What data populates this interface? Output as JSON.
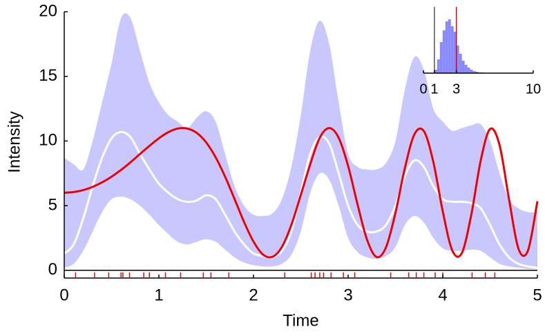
{
  "chart_data": [
    {
      "type": "line",
      "xlabel": "Time",
      "ylabel": "Intensity",
      "xlim": [
        0,
        5
      ],
      "ylim": [
        -0.6,
        20
      ],
      "xticks": [
        0,
        1,
        2,
        3,
        4,
        5
      ],
      "yticks": [
        0,
        5,
        10,
        15,
        20
      ],
      "x": [
        0,
        0.1,
        0.2,
        0.3,
        0.4,
        0.5,
        0.6,
        0.7,
        0.8,
        0.9,
        1,
        1.1,
        1.2,
        1.3,
        1.4,
        1.5,
        1.6,
        1.7,
        1.8,
        1.9,
        2,
        2.1,
        2.2,
        2.3,
        2.4,
        2.5,
        2.6,
        2.7,
        2.8,
        2.9,
        3,
        3.1,
        3.2,
        3.3,
        3.4,
        3.5,
        3.6,
        3.7,
        3.8,
        3.9,
        4,
        4.1,
        4.2,
        4.3,
        4.4,
        4.5,
        4.6,
        4.7,
        4.8,
        4.9,
        5
      ],
      "band": {
        "color": "#c8c8ff",
        "upper": [
          8.7,
          8.2,
          7.8,
          10,
          13,
          16,
          19.5,
          19.5,
          17,
          14.5,
          13,
          12,
          11.5,
          11,
          11.8,
          12.3,
          11.5,
          9,
          6.5,
          5,
          4.3,
          4.2,
          4.4,
          5.5,
          8,
          12,
          17,
          19.3,
          17.5,
          13,
          9,
          8,
          7.8,
          7.8,
          8.3,
          10,
          14,
          16.5,
          15.5,
          12.5,
          11.5,
          10.8,
          11,
          11.2,
          11.3,
          10,
          7.5,
          5.5,
          4.8,
          4.5,
          4.5
        ],
        "lower": [
          0.2,
          0.5,
          1.5,
          3,
          4.5,
          5.5,
          5.7,
          5.5,
          5,
          4.3,
          3.5,
          2.8,
          2.2,
          2,
          2.2,
          2.4,
          2.2,
          1.6,
          1,
          0.6,
          0.4,
          0.3,
          0.3,
          0.5,
          1.2,
          3,
          6,
          7.5,
          7,
          5,
          2.5,
          1.4,
          1,
          0.9,
          1.1,
          1.8,
          3.5,
          4.2,
          3.7,
          2.5,
          1.7,
          1.5,
          1.5,
          1.6,
          1.5,
          1,
          0.5,
          0.3,
          0.2,
          0.1,
          0.1
        ]
      },
      "series": [
        {
          "color": "#ffffff",
          "values": [
            1.3,
            2,
            4,
            6.5,
            8.7,
            10.2,
            10.7,
            10.3,
            9,
            7.8,
            6.7,
            6,
            5.5,
            5.3,
            5.4,
            5.8,
            5.5,
            4.3,
            3,
            2,
            1.3,
            1.1,
            1,
            1.5,
            3,
            6,
            9,
            10.3,
            9.8,
            7.5,
            5,
            3.5,
            3,
            3,
            3.5,
            5,
            7.3,
            8.5,
            8,
            6.5,
            5.5,
            5.3,
            5.3,
            5.2,
            4.8,
            3.5,
            2,
            1,
            0.5,
            0.3,
            0.2
          ]
        },
        {
          "color": "#ee0000",
          "values": [
            6,
            6.05,
            6.2,
            6.45,
            6.8,
            7.24,
            7.76,
            8.35,
            8.99,
            9.62,
            10.21,
            10.68,
            10.96,
            10.96,
            10.63,
            9.89,
            8.74,
            7.24,
            5.51,
            3.74,
            2.22,
            1.22,
            1.04,
            1.81,
            3.51,
            5.83,
            8.21,
            10.25,
            11,
            10.25,
            8.06,
            5.08,
            2.36,
            1.03,
            1.77,
            4.44,
            7.92,
            10.51,
            10.77,
            8.39,
            4.56,
            1.55,
            1.31,
            4.24,
            8.45,
            10.93,
            9.69,
            5.5,
            1.67,
            1.52,
            5.34
          ]
        }
      ],
      "events": [
        0.12,
        0.32,
        0.47,
        0.6,
        0.62,
        0.69,
        0.84,
        0.9,
        1.07,
        1.23,
        1.47,
        1.55,
        1.74,
        2.33,
        2.61,
        2.65,
        2.7,
        2.74,
        2.82,
        2.95,
        3.07,
        3.45,
        3.64,
        3.72,
        3.8,
        3.92,
        4,
        4.31,
        4.45,
        4.55
      ],
      "event_color": "#ee0000"
    },
    {
      "type": "histogram",
      "color": "#8888ff",
      "xlim": [
        0,
        10
      ],
      "ylim": [
        0,
        96
      ],
      "xticks": [
        0,
        1,
        3,
        10
      ],
      "bins": [
        1,
        1.25,
        1.5,
        1.75,
        2,
        2.25,
        2.5,
        2.75,
        3,
        3.25,
        3.5,
        3.75,
        4,
        4.25,
        4.5,
        4.75,
        5,
        5.25,
        5.5,
        5.75,
        6
      ],
      "counts": [
        5,
        20,
        45,
        62,
        75,
        78,
        68,
        60,
        40,
        28,
        18,
        12,
        8,
        5,
        3,
        2,
        1,
        1,
        0,
        0
      ],
      "markers": [
        {
          "value": 1,
          "color": "#555555"
        },
        {
          "value": 3,
          "color": "#ee0000"
        }
      ]
    }
  ]
}
